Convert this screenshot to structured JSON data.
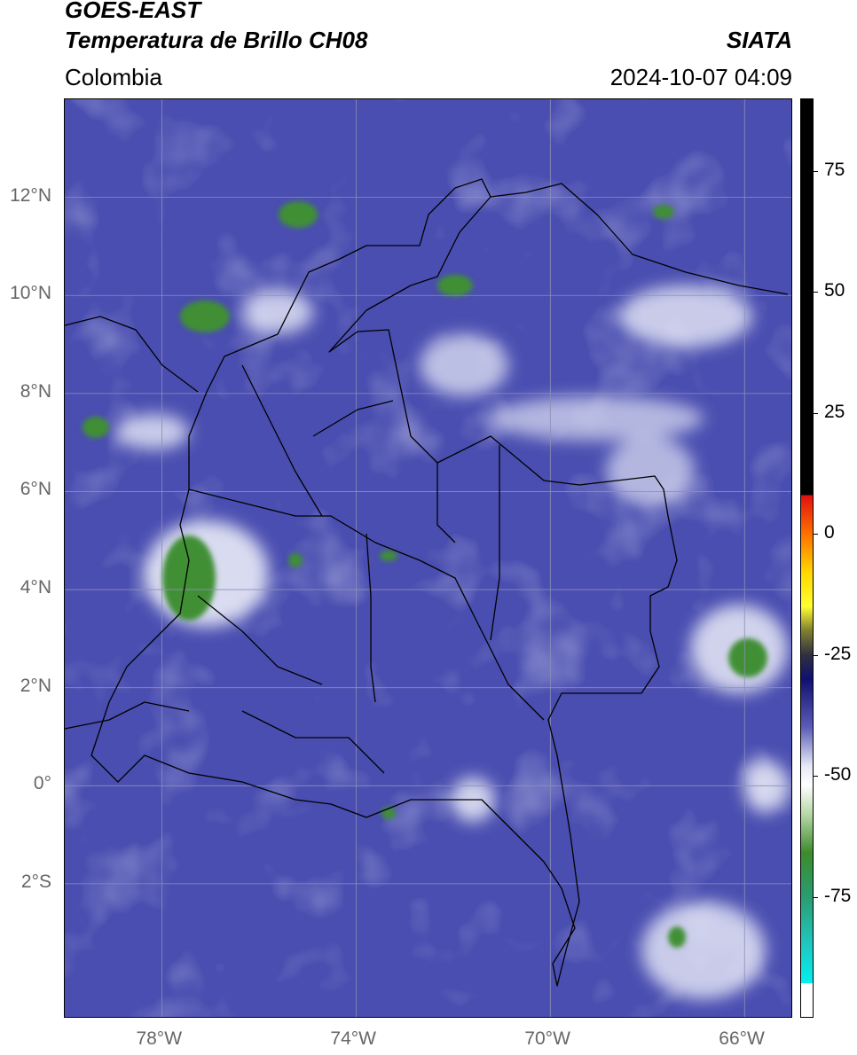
{
  "header": {
    "satellite": "GOES-EAST",
    "product": "Temperatura de Brillo CH08",
    "region": "Colombia",
    "brand": "SIATA",
    "datetime": "2024-10-07 04:09"
  },
  "map": {
    "lon_range": [
      -80,
      -65
    ],
    "lat_range": [
      -4.75,
      14.0
    ],
    "lon_ticks": [
      {
        "value": -78,
        "label": "78°W"
      },
      {
        "value": -74,
        "label": "74°W"
      },
      {
        "value": -70,
        "label": "70°W"
      },
      {
        "value": -66,
        "label": "66°W"
      }
    ],
    "lat_ticks": [
      {
        "value": 12,
        "label": "12°N"
      },
      {
        "value": 10,
        "label": "10°N"
      },
      {
        "value": 8,
        "label": "8°N"
      },
      {
        "value": 6,
        "label": "6°N"
      },
      {
        "value": 4,
        "label": "4°N"
      },
      {
        "value": 2,
        "label": "2°N"
      },
      {
        "value": 0,
        "label": "0°"
      },
      {
        "value": -2,
        "label": "2°S"
      }
    ],
    "gridlines": true,
    "colors": {
      "background": "#4a4eb0",
      "cold_white": "#e8ebf7",
      "convective_green": "#3f8f36",
      "border": "#000000"
    }
  },
  "colorbar": {
    "range": [
      -100,
      90
    ],
    "ticks": [
      {
        "value": 75,
        "label": "75"
      },
      {
        "value": 50,
        "label": "50"
      },
      {
        "value": 25,
        "label": "25"
      },
      {
        "value": 0,
        "label": "0"
      },
      {
        "value": -25,
        "label": "-25"
      },
      {
        "value": -50,
        "label": "-50"
      },
      {
        "value": -75,
        "label": "-75"
      }
    ],
    "stops": [
      {
        "v": 90,
        "c": "#000000"
      },
      {
        "v": 8,
        "c": "#000000"
      },
      {
        "v": 8,
        "c": "#e01010"
      },
      {
        "v": 0,
        "c": "#ff7000"
      },
      {
        "v": -8,
        "c": "#ffd800"
      },
      {
        "v": -15,
        "c": "#ffff30"
      },
      {
        "v": -20,
        "c": "#808030"
      },
      {
        "v": -25,
        "c": "#303040"
      },
      {
        "v": -30,
        "c": "#101070"
      },
      {
        "v": -40,
        "c": "#5a5cb8"
      },
      {
        "v": -48,
        "c": "#e6e8f6"
      },
      {
        "v": -52,
        "c": "#ffffff"
      },
      {
        "v": -58,
        "c": "#b8d8a8"
      },
      {
        "v": -66,
        "c": "#3c8c2c"
      },
      {
        "v": -75,
        "c": "#2a9c70"
      },
      {
        "v": -85,
        "c": "#20c8c0"
      },
      {
        "v": -93,
        "c": "#00f0f0"
      },
      {
        "v": -93,
        "c": "#ffffff"
      },
      {
        "v": -100,
        "c": "#ffffff"
      }
    ]
  }
}
